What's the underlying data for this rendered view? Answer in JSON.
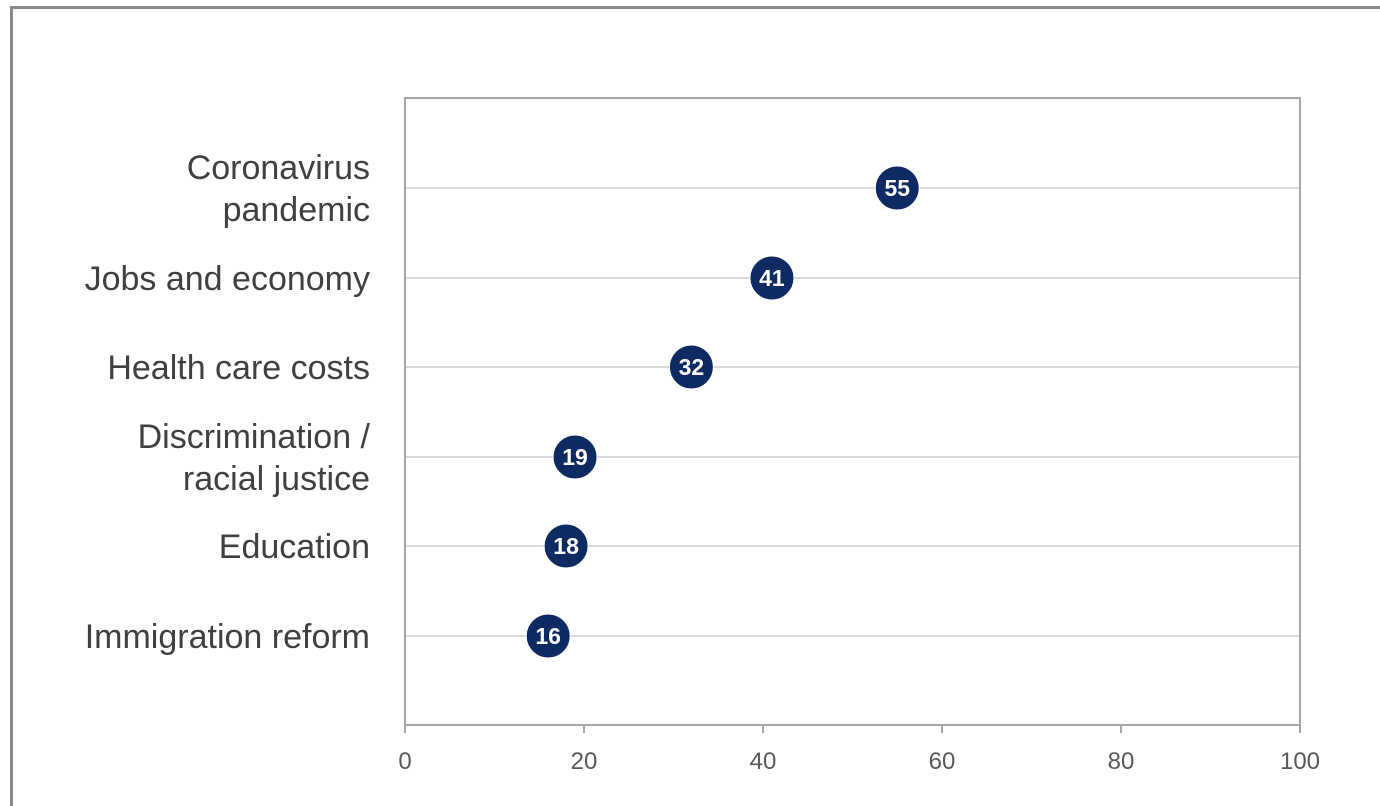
{
  "chart_data": {
    "type": "scatter",
    "title": "",
    "xlabel": "",
    "ylabel": "",
    "xlim": [
      0,
      100
    ],
    "x_ticks": [
      0,
      20,
      40,
      60,
      80,
      100
    ],
    "grid": "horizontal",
    "categories": [
      [
        "Coronavirus",
        "pandemic"
      ],
      [
        "Jobs and economy"
      ],
      [
        "Health care costs"
      ],
      [
        "Discrimination /",
        "racial justice"
      ],
      [
        "Education"
      ],
      [
        "Immigration reform"
      ]
    ],
    "values": [
      55,
      41,
      32,
      19,
      18,
      16
    ],
    "marker_color": "#0d2a63",
    "label_color": "#ffffff"
  }
}
